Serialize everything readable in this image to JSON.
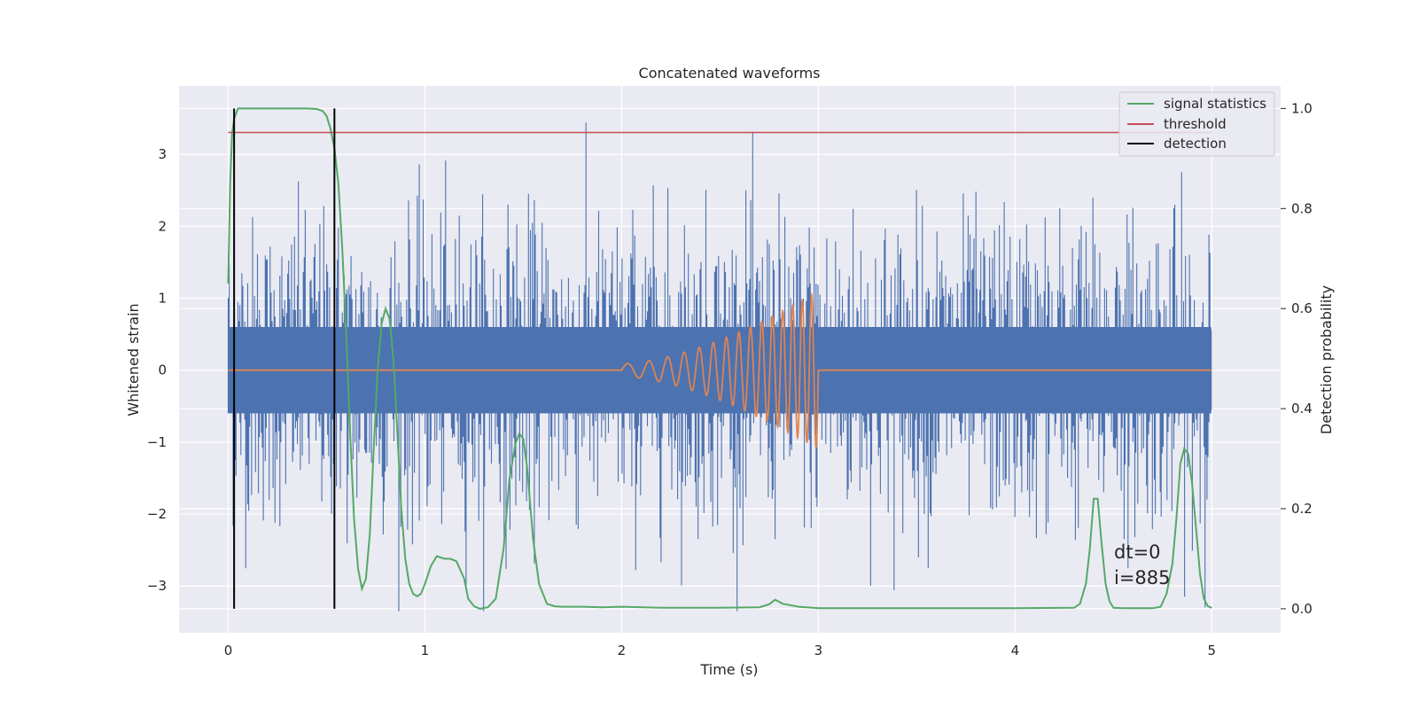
{
  "chart_data": {
    "type": "line",
    "title": "Concatenated waveforms",
    "xlabel": "Time (s)",
    "ylabel": "Whitened strain",
    "y2label": "Detection probability",
    "xlim": [
      -0.25,
      5.35
    ],
    "ylim": [
      -3.65,
      3.95
    ],
    "y2lim": [
      -0.048,
      1.045
    ],
    "x_ticks": [
      0,
      1,
      2,
      3,
      4,
      5
    ],
    "y_ticks": [
      -3,
      -2,
      -1,
      0,
      1,
      2,
      3
    ],
    "y2_ticks": [
      0.0,
      0.2,
      0.4,
      0.6,
      0.8,
      1.0
    ],
    "x_tick_labels": [
      "0",
      "1",
      "2",
      "3",
      "4",
      "5"
    ],
    "y_tick_labels": [
      "−3",
      "−2",
      "−1",
      "0",
      "1",
      "2",
      "3"
    ],
    "y2_tick_labels": [
      "0.0",
      "0.2",
      "0.4",
      "0.6",
      "0.8",
      "1.0"
    ],
    "grid": true,
    "legend_position": "top-right",
    "colors": {
      "strain": "#4c72b0",
      "injection": "#dd8452",
      "signal_statistics": "#55a868",
      "threshold": "#c44e52",
      "detection": "#000000",
      "plot_background": "#eaeaf2",
      "grid": "#ffffff"
    },
    "series": [
      {
        "name": "signal statistics",
        "axis": "right",
        "x": [
          0.0,
          0.01,
          0.02,
          0.03,
          0.05,
          0.08,
          0.1,
          0.15,
          0.2,
          0.3,
          0.4,
          0.45,
          0.48,
          0.5,
          0.52,
          0.54,
          0.56,
          0.58,
          0.6,
          0.62,
          0.64,
          0.66,
          0.68,
          0.7,
          0.72,
          0.74,
          0.76,
          0.78,
          0.8,
          0.82,
          0.84,
          0.86,
          0.88,
          0.9,
          0.92,
          0.94,
          0.96,
          0.98,
          1.0,
          1.03,
          1.06,
          1.1,
          1.13,
          1.16,
          1.2,
          1.22,
          1.25,
          1.28,
          1.32,
          1.36,
          1.4,
          1.43,
          1.46,
          1.48,
          1.5,
          1.52,
          1.55,
          1.58,
          1.62,
          1.66,
          1.7,
          1.8,
          1.9,
          2.0,
          2.2,
          2.5,
          2.7,
          2.75,
          2.78,
          2.82,
          2.9,
          3.0,
          3.5,
          4.0,
          4.3,
          4.33,
          4.36,
          4.38,
          4.4,
          4.42,
          4.44,
          4.46,
          4.48,
          4.5,
          4.55,
          4.6,
          4.65,
          4.7,
          4.74,
          4.77,
          4.8,
          4.82,
          4.84,
          4.86,
          4.88,
          4.9,
          4.92,
          4.94,
          4.96,
          4.98,
          5.0
        ],
        "values": [
          0.65,
          0.85,
          0.95,
          0.98,
          1.0,
          1.0,
          1.0,
          1.0,
          1.0,
          1.0,
          1.0,
          0.999,
          0.995,
          0.985,
          0.96,
          0.92,
          0.85,
          0.72,
          0.55,
          0.35,
          0.18,
          0.08,
          0.04,
          0.06,
          0.15,
          0.32,
          0.48,
          0.57,
          0.6,
          0.58,
          0.5,
          0.35,
          0.2,
          0.1,
          0.05,
          0.03,
          0.025,
          0.03,
          0.05,
          0.085,
          0.105,
          0.1,
          0.1,
          0.095,
          0.06,
          0.02,
          0.005,
          0.0,
          0.003,
          0.02,
          0.12,
          0.26,
          0.33,
          0.35,
          0.34,
          0.28,
          0.14,
          0.05,
          0.01,
          0.005,
          0.004,
          0.004,
          0.003,
          0.004,
          0.002,
          0.002,
          0.003,
          0.009,
          0.018,
          0.01,
          0.004,
          0.001,
          0.001,
          0.001,
          0.002,
          0.01,
          0.05,
          0.12,
          0.22,
          0.22,
          0.13,
          0.05,
          0.015,
          0.002,
          0.001,
          0.001,
          0.001,
          0.001,
          0.004,
          0.03,
          0.09,
          0.18,
          0.29,
          0.32,
          0.31,
          0.25,
          0.16,
          0.07,
          0.02,
          0.005,
          0.002
        ]
      },
      {
        "name": "threshold",
        "axis": "right",
        "x": [
          0.0,
          5.0
        ],
        "values": [
          0.952,
          0.952
        ]
      },
      {
        "name": "detection",
        "axis": "right",
        "type": "vlines",
        "x": [
          0.03,
          0.54
        ],
        "range": [
          0.0,
          1.0
        ]
      }
    ],
    "strain_noise": {
      "axis": "left",
      "x_range": [
        0,
        5
      ],
      "core_amplitude": 0.55,
      "peak_range": [
        -3.35,
        3.6
      ]
    },
    "injection_waveform": {
      "axis": "left",
      "t_start": 2.0,
      "t_end": 3.0,
      "peak_amplitude": 1.1
    },
    "annotations": [
      "dt=0",
      "i=885"
    ],
    "legend": [
      "signal statistics",
      "threshold",
      "detection"
    ]
  }
}
